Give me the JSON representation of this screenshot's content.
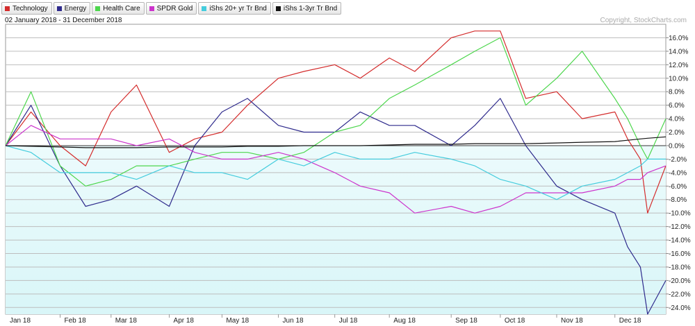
{
  "header": {
    "date_range": "02 January 2018 - 31 December 2018",
    "copyright": "Copyright, StockCharts.com"
  },
  "chart_data": {
    "type": "line",
    "title": "",
    "xlabel": "",
    "ylabel": "",
    "ylim": [
      -25,
      18
    ],
    "grid": true,
    "legend_position": "top-left",
    "y_ticks": [
      {
        "value": 16,
        "label": "16.0%"
      },
      {
        "value": 14,
        "label": "14.0%"
      },
      {
        "value": 12,
        "label": "12.0%"
      },
      {
        "value": 10,
        "label": "10.0%"
      },
      {
        "value": 8,
        "label": "8.0%"
      },
      {
        "value": 6,
        "label": "6.0%"
      },
      {
        "value": 4,
        "label": "4.0%"
      },
      {
        "value": 2,
        "label": "2.0%"
      },
      {
        "value": 0,
        "label": "0.0%"
      },
      {
        "value": -2,
        "label": "-2.0%"
      },
      {
        "value": -4,
        "label": "-4.0%"
      },
      {
        "value": -6,
        "label": "-6.0%"
      },
      {
        "value": -8,
        "label": "-8.0%"
      },
      {
        "value": -10,
        "label": "-10.0%"
      },
      {
        "value": -12,
        "label": "-12.0%"
      },
      {
        "value": -14,
        "label": "-14.0%"
      },
      {
        "value": -16,
        "label": "-16.0%"
      },
      {
        "value": -18,
        "label": "-18.0%"
      },
      {
        "value": -20,
        "label": "-20.0%"
      },
      {
        "value": -22,
        "label": "-22.0%"
      },
      {
        "value": -24,
        "label": "-24.0%"
      }
    ],
    "x_ticks": [
      "Jan 18",
      "Feb 18",
      "Mar 18",
      "Apr 18",
      "May 18",
      "Jun 18",
      "Jul 18",
      "Aug 18",
      "Sep 18",
      "Oct 18",
      "Nov 18",
      "Dec 18"
    ],
    "x": [
      "2018-01-02",
      "2018-01-16",
      "2018-02-01",
      "2018-02-15",
      "2018-03-01",
      "2018-03-15",
      "2018-04-02",
      "2018-04-16",
      "2018-05-01",
      "2018-05-15",
      "2018-06-01",
      "2018-06-15",
      "2018-07-02",
      "2018-07-16",
      "2018-08-01",
      "2018-08-15",
      "2018-09-04",
      "2018-09-17",
      "2018-10-01",
      "2018-10-15",
      "2018-11-01",
      "2018-11-15",
      "2018-12-03",
      "2018-12-10",
      "2018-12-17",
      "2018-12-21",
      "2018-12-31"
    ],
    "series": [
      {
        "name": "Technology",
        "color": "#d42c2c",
        "values": [
          0,
          5,
          0,
          -3,
          5,
          9,
          -1,
          1,
          2,
          6,
          10,
          11,
          12,
          10,
          13,
          11,
          16,
          17,
          17,
          7,
          8,
          4,
          5,
          1,
          -2,
          -10,
          -3
        ]
      },
      {
        "name": "Energy",
        "color": "#2e2a8c",
        "values": [
          0,
          6,
          -3,
          -9,
          -8,
          -6,
          -9,
          0,
          5,
          7,
          3,
          2,
          2,
          5,
          3,
          3,
          0,
          3,
          7,
          0,
          -6,
          -8,
          -10,
          -15,
          -18,
          -25,
          -20
        ]
      },
      {
        "name": "Health Care",
        "color": "#4cd64c",
        "values": [
          0,
          8,
          -3,
          -6,
          -5,
          -3,
          -3,
          -2,
          -1,
          -1,
          -2,
          -1,
          2,
          3,
          7,
          9,
          12,
          14,
          16,
          6,
          10,
          14,
          7,
          4,
          0,
          -2,
          4
        ]
      },
      {
        "name": "SPDR Gold",
        "color": "#cc33cc",
        "values": [
          0,
          3,
          1,
          1,
          1,
          0,
          1,
          -1,
          -2,
          -2,
          -1,
          -2,
          -4,
          -6,
          -7,
          -10,
          -9,
          -10,
          -9,
          -7,
          -7,
          -7,
          -6,
          -5,
          -5,
          -4,
          -3
        ]
      },
      {
        "name": "iShs 20+ yr Tr Bnd",
        "color": "#44ccdd",
        "values": [
          0,
          -1,
          -4,
          -4,
          -4,
          -5,
          -3,
          -4,
          -4,
          -5,
          -2,
          -3,
          -1,
          -2,
          -2,
          -1,
          -2,
          -3,
          -5,
          -6,
          -8,
          -6,
          -5,
          -4,
          -3,
          -2,
          -2
        ]
      },
      {
        "name": "iShs 1-3yr Tr Bnd",
        "color": "#111111",
        "values": [
          0,
          -0.1,
          -0.2,
          -0.3,
          -0.3,
          -0.3,
          -0.2,
          -0.2,
          -0.2,
          -0.1,
          -0.1,
          0,
          0,
          0,
          0.1,
          0.2,
          0.2,
          0.3,
          0.3,
          0.3,
          0.4,
          0.5,
          0.6,
          0.8,
          1.0,
          1.1,
          1.3
        ]
      }
    ]
  }
}
